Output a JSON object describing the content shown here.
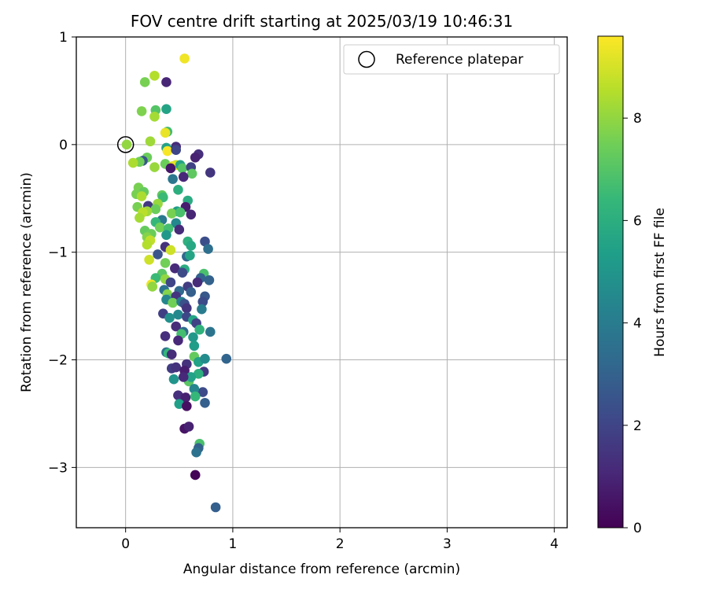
{
  "chart_data": {
    "type": "scatter",
    "title": "FOV centre drift starting at 2025/03/19 10:46:31",
    "xlabel": "Angular distance from reference (arcmin)",
    "ylabel": "Rotation from reference (arcmin)",
    "xlim": [
      -0.46,
      4.12
    ],
    "ylim": [
      -3.56,
      1.0
    ],
    "xticks": [
      0,
      1,
      2,
      3,
      4
    ],
    "yticks": [
      1,
      0,
      -1,
      -2,
      -3
    ],
    "xtick_labels": [
      "0",
      "1",
      "2",
      "3",
      "4"
    ],
    "ytick_labels": [
      "1",
      "0",
      "−1",
      "−2",
      "−3"
    ],
    "grid": true,
    "legend": {
      "placement": "top-right",
      "entries": [
        "Reference platepar"
      ]
    },
    "reference_point": {
      "x": 0.0,
      "y": 0.0
    },
    "colorbar": {
      "label": "Hours from first FF file",
      "range": [
        0,
        9.6
      ],
      "ticks": [
        0,
        2,
        4,
        6,
        8
      ],
      "tick_labels": [
        "0",
        "2",
        "4",
        "6",
        "8"
      ],
      "colormap": [
        "#440154",
        "#482878",
        "#3e4989",
        "#31688e",
        "#26828e",
        "#1f9e89",
        "#35b779",
        "#6ece58",
        "#b5de2b",
        "#fde725"
      ]
    },
    "points": [
      [
        0.55,
        0.8,
        9.4
      ],
      [
        0.27,
        0.64,
        8.5
      ],
      [
        0.18,
        0.58,
        7.6
      ],
      [
        0.38,
        0.58,
        1.0
      ],
      [
        0.28,
        0.32,
        7.0
      ],
      [
        0.38,
        0.33,
        5.6
      ],
      [
        0.15,
        0.31,
        7.7
      ],
      [
        0.27,
        0.26,
        8.3
      ],
      [
        0.39,
        0.12,
        6.6
      ],
      [
        0.37,
        0.11,
        9.3
      ],
      [
        0.23,
        0.03,
        8.2
      ],
      [
        0.01,
        0.0,
        8.0
      ],
      [
        0.38,
        -0.03,
        5.5
      ],
      [
        0.47,
        -0.02,
        1.2
      ],
      [
        0.39,
        -0.06,
        9.5
      ],
      [
        0.47,
        -0.05,
        2.0
      ],
      [
        0.68,
        -0.09,
        1.3
      ],
      [
        0.65,
        -0.12,
        0.9
      ],
      [
        0.2,
        -0.12,
        7.4
      ],
      [
        0.16,
        -0.15,
        2.6
      ],
      [
        0.13,
        -0.16,
        7.5
      ],
      [
        0.07,
        -0.17,
        8.4
      ],
      [
        0.37,
        -0.18,
        7.4
      ],
      [
        0.47,
        -0.19,
        8.8
      ],
      [
        0.44,
        -0.2,
        9.2
      ],
      [
        0.51,
        -0.19,
        5.6
      ],
      [
        0.53,
        -0.22,
        7.0
      ],
      [
        0.27,
        -0.21,
        8.1
      ],
      [
        0.42,
        -0.22,
        0.6
      ],
      [
        0.61,
        -0.21,
        1.9
      ],
      [
        0.79,
        -0.26,
        1.5
      ],
      [
        0.62,
        -0.27,
        7.2
      ],
      [
        0.54,
        -0.3,
        1.1
      ],
      [
        0.44,
        -0.32,
        3.8
      ],
      [
        0.12,
        -0.4,
        7.6
      ],
      [
        0.34,
        -0.47,
        7.2
      ],
      [
        0.17,
        -0.44,
        7.3
      ],
      [
        0.1,
        -0.46,
        7.6
      ],
      [
        0.49,
        -0.42,
        6.0
      ],
      [
        0.15,
        -0.48,
        8.4
      ],
      [
        0.35,
        -0.49,
        6.5
      ],
      [
        0.58,
        -0.52,
        5.9
      ],
      [
        0.3,
        -0.55,
        8.1
      ],
      [
        0.21,
        -0.57,
        1.6
      ],
      [
        0.11,
        -0.58,
        7.6
      ],
      [
        0.56,
        -0.58,
        0.8
      ],
      [
        0.28,
        -0.6,
        7.4
      ],
      [
        0.2,
        -0.62,
        8.2
      ],
      [
        0.48,
        -0.62,
        5.3
      ],
      [
        0.16,
        -0.63,
        8.6
      ],
      [
        0.43,
        -0.64,
        7.6
      ],
      [
        0.51,
        -0.63,
        6.8
      ],
      [
        0.61,
        -0.65,
        1.0
      ],
      [
        0.13,
        -0.68,
        8.3
      ],
      [
        0.34,
        -0.7,
        3.9
      ],
      [
        0.28,
        -0.72,
        6.4
      ],
      [
        0.47,
        -0.73,
        4.5
      ],
      [
        0.32,
        -0.77,
        7.5
      ],
      [
        0.4,
        -0.78,
        6.7
      ],
      [
        0.5,
        -0.79,
        1.2
      ],
      [
        0.18,
        -0.8,
        7.3
      ],
      [
        0.24,
        -0.83,
        7.4
      ],
      [
        0.38,
        -0.84,
        5.1
      ],
      [
        0.2,
        -0.86,
        7.8
      ],
      [
        0.23,
        -0.89,
        8.7
      ],
      [
        0.58,
        -0.9,
        6.1
      ],
      [
        0.74,
        -0.9,
        2.3
      ],
      [
        0.2,
        -0.93,
        8.5
      ],
      [
        0.61,
        -0.94,
        5.7
      ],
      [
        0.37,
        -0.95,
        1.4
      ],
      [
        0.42,
        -0.98,
        8.9
      ],
      [
        0.77,
        -0.97,
        3.5
      ],
      [
        0.3,
        -1.02,
        2.5
      ],
      [
        0.22,
        -1.07,
        8.9
      ],
      [
        0.57,
        -1.04,
        3.2
      ],
      [
        0.6,
        -1.03,
        5.6
      ],
      [
        0.37,
        -1.1,
        7.5
      ],
      [
        0.46,
        -1.15,
        1.2
      ],
      [
        0.55,
        -1.16,
        5.9
      ],
      [
        0.53,
        -1.19,
        2.2
      ],
      [
        0.34,
        -1.2,
        7.1
      ],
      [
        0.28,
        -1.24,
        6.5
      ],
      [
        0.73,
        -1.2,
        6.8
      ],
      [
        0.7,
        -1.24,
        3.0
      ],
      [
        0.37,
        -1.25,
        8.0
      ],
      [
        0.42,
        -1.28,
        2.0
      ],
      [
        0.67,
        -1.28,
        1.2
      ],
      [
        0.78,
        -1.26,
        3.0
      ],
      [
        0.24,
        -1.3,
        9.4
      ],
      [
        0.25,
        -1.32,
        8.0
      ],
      [
        0.58,
        -1.32,
        1.7
      ],
      [
        0.36,
        -1.35,
        3.6
      ],
      [
        0.5,
        -1.36,
        3.3
      ],
      [
        0.61,
        -1.37,
        2.9
      ],
      [
        0.39,
        -1.39,
        7.8
      ],
      [
        0.42,
        -1.43,
        7.2
      ],
      [
        0.47,
        -1.41,
        1.5
      ],
      [
        0.74,
        -1.41,
        2.6
      ],
      [
        0.38,
        -1.44,
        4.4
      ],
      [
        0.44,
        -1.47,
        7.5
      ],
      [
        0.52,
        -1.46,
        4.0
      ],
      [
        0.55,
        -1.48,
        2.4
      ],
      [
        0.72,
        -1.46,
        2.2
      ],
      [
        0.57,
        -1.52,
        1.5
      ],
      [
        0.71,
        -1.53,
        4.0
      ],
      [
        0.35,
        -1.57,
        1.8
      ],
      [
        0.49,
        -1.58,
        4.5
      ],
      [
        0.41,
        -1.61,
        4.8
      ],
      [
        0.57,
        -1.6,
        2.1
      ],
      [
        0.63,
        -1.63,
        5.6
      ],
      [
        0.66,
        -1.66,
        1.9
      ],
      [
        0.47,
        -1.69,
        1.2
      ],
      [
        0.69,
        -1.72,
        6.2
      ],
      [
        0.79,
        -1.74,
        3.7
      ],
      [
        0.54,
        -1.74,
        3.3
      ],
      [
        0.52,
        -1.76,
        6.7
      ],
      [
        0.37,
        -1.78,
        1.3
      ],
      [
        0.63,
        -1.79,
        5.1
      ],
      [
        0.49,
        -1.82,
        1.1
      ],
      [
        0.64,
        -1.87,
        5.3
      ],
      [
        0.38,
        -1.93,
        3.6
      ],
      [
        0.4,
        -1.94,
        6.4
      ],
      [
        0.43,
        -1.95,
        1.2
      ],
      [
        0.64,
        -1.97,
        7.3
      ],
      [
        0.68,
        -2.02,
        5.5
      ],
      [
        0.74,
        -1.99,
        4.6
      ],
      [
        0.94,
        -1.99,
        3.1
      ],
      [
        0.57,
        -2.04,
        1.4
      ],
      [
        0.43,
        -2.08,
        1.7
      ],
      [
        0.47,
        -2.07,
        1.4
      ],
      [
        0.55,
        -2.1,
        0.8
      ],
      [
        0.73,
        -2.11,
        1.6
      ],
      [
        0.68,
        -2.13,
        6.0
      ],
      [
        0.45,
        -2.18,
        5.0
      ],
      [
        0.59,
        -2.2,
        7.1
      ],
      [
        0.61,
        -2.16,
        5.5
      ],
      [
        0.54,
        -2.16,
        1.1
      ],
      [
        0.72,
        -2.3,
        2.2
      ],
      [
        0.64,
        -2.27,
        4.4
      ],
      [
        0.49,
        -2.33,
        1.3
      ],
      [
        0.56,
        -2.35,
        0.9
      ],
      [
        0.65,
        -2.34,
        6.4
      ],
      [
        0.5,
        -2.41,
        5.4
      ],
      [
        0.57,
        -2.43,
        0.4
      ],
      [
        0.74,
        -2.4,
        2.9
      ],
      [
        0.55,
        -2.64,
        0.5
      ],
      [
        0.59,
        -2.62,
        0.9
      ],
      [
        0.69,
        -2.78,
        6.8
      ],
      [
        0.68,
        -2.82,
        3.0
      ],
      [
        0.66,
        -2.86,
        3.6
      ],
      [
        0.65,
        -3.07,
        0.1
      ],
      [
        0.84,
        -3.37,
        2.9
      ]
    ]
  }
}
